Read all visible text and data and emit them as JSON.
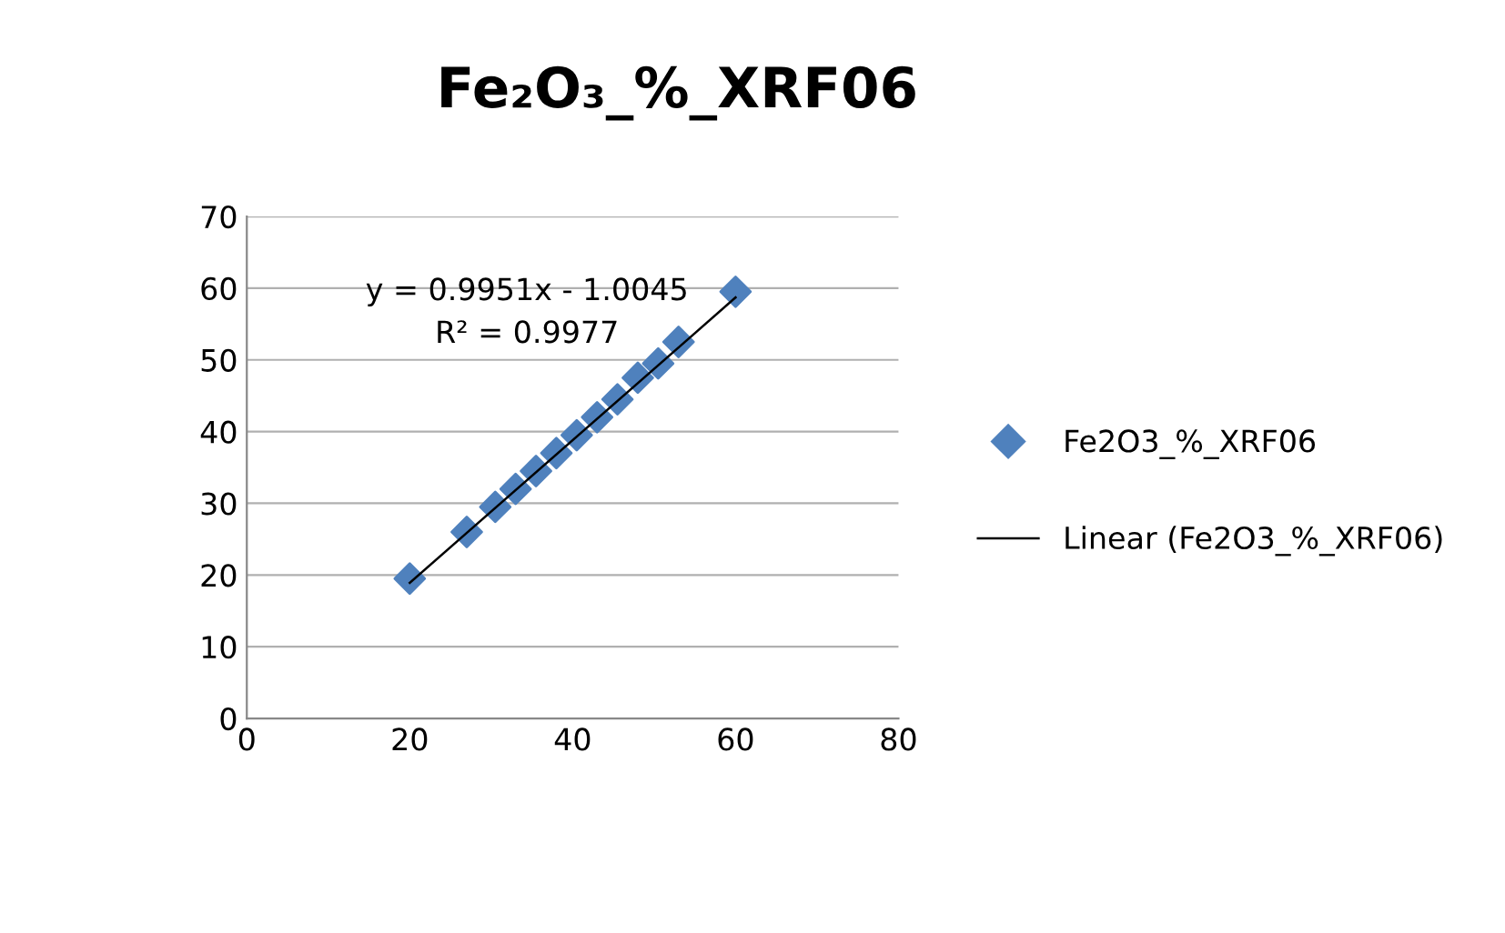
{
  "chart_data": {
    "type": "scatter",
    "title": "Fe₂O₃_%_XRF06",
    "series": [
      {
        "name": "Fe2O3_%_XRF06",
        "color": "#4f81bd",
        "marker": "diamond",
        "x": [
          20,
          27,
          30.5,
          33,
          35.5,
          38,
          40.5,
          43,
          45.5,
          48,
          50.5,
          53,
          60
        ],
        "values": [
          19.5,
          26,
          29.5,
          32,
          34.5,
          37,
          39.5,
          42,
          44.5,
          47.5,
          49.5,
          52.5,
          59.5
        ]
      },
      {
        "name": "Linear (Fe2O3_%_XRF06)",
        "type": "line",
        "color": "#000000",
        "line_style": "solid",
        "marker": "none",
        "x": [
          20,
          60
        ],
        "values": [
          18.9,
          58.7
        ]
      }
    ],
    "annotations": [
      "y = 0.9951x - 1.0045",
      "R² = 0.9977"
    ],
    "xlim": [
      0,
      80
    ],
    "xticks": [
      0,
      20,
      40,
      60,
      80
    ],
    "ylim": [
      0,
      70
    ],
    "yticks": [
      0,
      10,
      20,
      30,
      40,
      50,
      60,
      70
    ],
    "grid": "y",
    "legend": "right"
  }
}
